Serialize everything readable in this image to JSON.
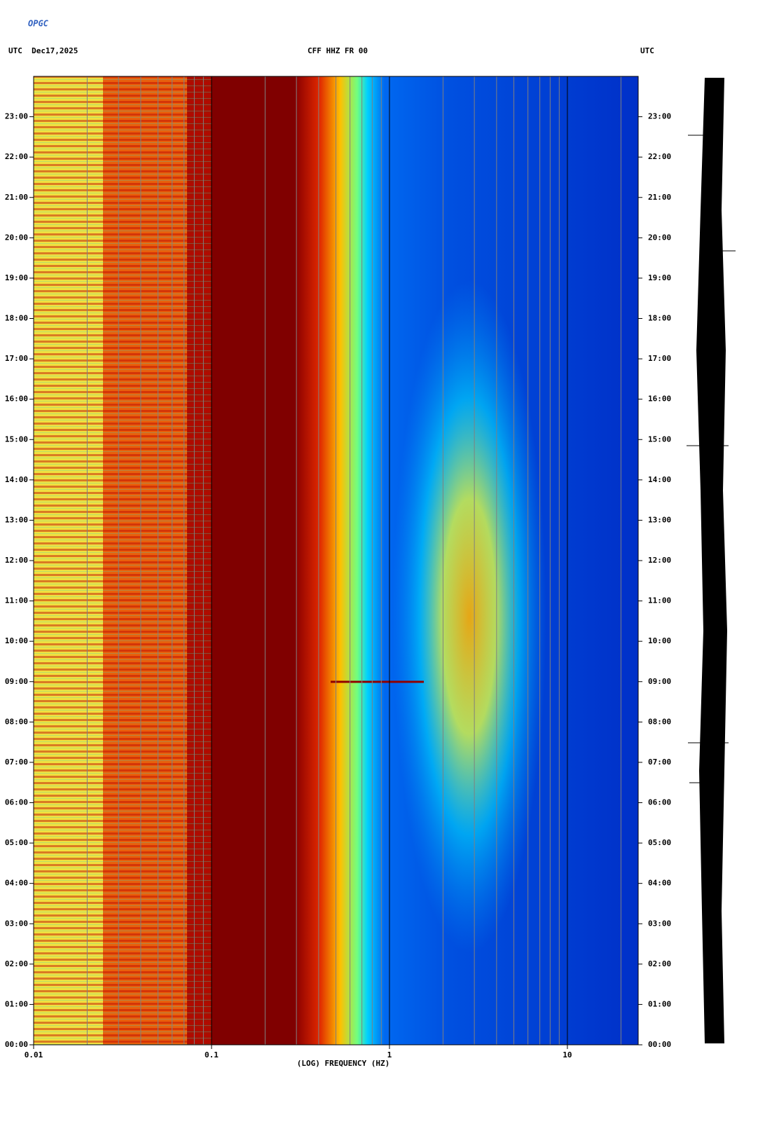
{
  "logo": "OPGC",
  "chart_data": {
    "type": "spectrogram",
    "title": "CFF HHZ FR 00",
    "subtitle_left": "UTC  Dec17,2025",
    "subtitle_right": "UTC",
    "xlabel": "(LOG) FREQUENCY (HZ)",
    "xscale": "log",
    "xlim": [
      0.01,
      25
    ],
    "xticks": [
      0.01,
      0.1,
      1,
      10
    ],
    "xminorticks": [
      0.02,
      0.03,
      0.04,
      0.05,
      0.06,
      0.07,
      0.08,
      0.09,
      0.2,
      0.3,
      0.4,
      0.5,
      0.6,
      0.7,
      0.8,
      0.9,
      2,
      3,
      4,
      5,
      6,
      7,
      8,
      9,
      20
    ],
    "ylim": [
      0,
      24
    ],
    "yticks": [
      {
        "value": 0,
        "label": "00:00"
      },
      {
        "value": 1,
        "label": "01:00"
      },
      {
        "value": 2,
        "label": "02:00"
      },
      {
        "value": 3,
        "label": "03:00"
      },
      {
        "value": 4,
        "label": "04:00"
      },
      {
        "value": 5,
        "label": "05:00"
      },
      {
        "value": 6,
        "label": "06:00"
      },
      {
        "value": 7,
        "label": "07:00"
      },
      {
        "value": 8,
        "label": "08:00"
      },
      {
        "value": 9,
        "label": "09:00"
      },
      {
        "value": 10,
        "label": "10:00"
      },
      {
        "value": 11,
        "label": "11:00"
      },
      {
        "value": 12,
        "label": "12:00"
      },
      {
        "value": 13,
        "label": "13:00"
      },
      {
        "value": 14,
        "label": "14:00"
      },
      {
        "value": 15,
        "label": "15:00"
      },
      {
        "value": 16,
        "label": "16:00"
      },
      {
        "value": 17,
        "label": "17:00"
      },
      {
        "value": 18,
        "label": "18:00"
      },
      {
        "value": 19,
        "label": "19:00"
      },
      {
        "value": 20,
        "label": "20:00"
      },
      {
        "value": 21,
        "label": "21:00"
      },
      {
        "value": 22,
        "label": "22:00"
      },
      {
        "value": 23,
        "label": "23:00"
      }
    ],
    "grid": true,
    "grid_color": "#808080",
    "major_grid_color": "#000000"
  }
}
